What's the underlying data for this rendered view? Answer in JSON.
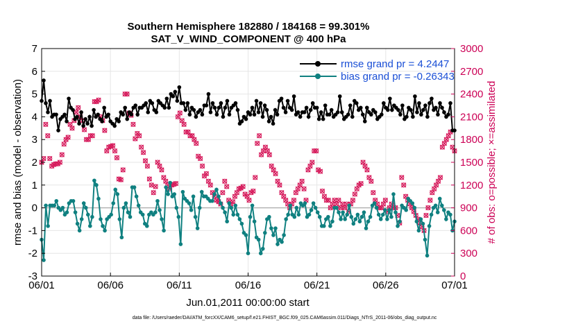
{
  "chart_data": {
    "type": "line",
    "title_line1": "Southern Hemisphere 182880 / 184168 = 99.301%",
    "title_line2": "SAT_V_WIND_COMPONENT @ 400 hPa",
    "ylabel_left": "rmse and bias (model - observation)",
    "ylabel_right": "# of obs: o=possible; ×=assimilated",
    "xlabel": "Jun.01,2011 00:00:00 start",
    "footnote": "data file: /Users/raeder/DAI/ATM_forcXX/CAM6_setup/f.e21.FHIST_BGC.f09_025.CAM6assim.011/Diags_NTrS_2011-06/obs_diag_output.nc",
    "x_ticks": [
      "06/01",
      "06/06",
      "06/11",
      "06/16",
      "06/21",
      "06/26",
      "07/01"
    ],
    "x_range_days": [
      0,
      30
    ],
    "ylim_left": [
      -3,
      7
    ],
    "yticks_left": [
      "-3",
      "-2",
      "-1",
      "0",
      "1",
      "2",
      "3",
      "4",
      "5",
      "6",
      "7"
    ],
    "ylim_right": [
      0,
      3000
    ],
    "yticks_right": [
      "0",
      "300",
      "600",
      "900",
      "1200",
      "1500",
      "1800",
      "2100",
      "2400",
      "2700",
      "3000"
    ],
    "grid": true,
    "legend_position": "top-right",
    "colors": {
      "rmse": "#000000",
      "bias": "#0f8080",
      "obs": "#d61a5b",
      "zero_line": "#aaaaaa",
      "legend_text": "#1a4fd6",
      "right_axis": "#cc0055"
    },
    "series": [
      {
        "name": "rmse grand pr = 4.2447",
        "axis": "left",
        "values": [
          4.7,
          5.6,
          4.6,
          4.2,
          4.7,
          4.0,
          4.1,
          4.1,
          3.4,
          3.9,
          4.0,
          4.1,
          3.8,
          4.8,
          4.4,
          4.3,
          3.9,
          4.0,
          3.7,
          4.2,
          3.6,
          3.9,
          3.7,
          4.0,
          3.6,
          4.3,
          4.0,
          4.1,
          3.9,
          3.8,
          4.4,
          4.0,
          4.1,
          3.8,
          3.7,
          3.6,
          3.9,
          3.8,
          4.2,
          4.1,
          4.4,
          3.9,
          4.2,
          4.1,
          4.4,
          4.5,
          4.1,
          4.4,
          4.4,
          4.5,
          4.6,
          4.2,
          4.7,
          4.6,
          4.3,
          4.2,
          4.7,
          4.6,
          4.5,
          4.4,
          4.8,
          4.4,
          5.0,
          4.9,
          5.1,
          4.7,
          5.3,
          4.6,
          4.6,
          4.3,
          4.6,
          4.1,
          4.4,
          4.3,
          4.0,
          4.2,
          4.3,
          4.1,
          4.5,
          4.5,
          5.0,
          4.2,
          4.6,
          4.4,
          4.1,
          4.4,
          4.6,
          4.0,
          4.4,
          4.7,
          4.1,
          4.4,
          4.5,
          4.6,
          4.3,
          3.7,
          3.8,
          4.0,
          3.9,
          4.2,
          4.1,
          4.4,
          4.1,
          4.7,
          4.2,
          4.6,
          4.0,
          4.5,
          4.3,
          3.8,
          4.0,
          3.7,
          4.3,
          4.1,
          4.7,
          4.8,
          4.4,
          4.2,
          4.7,
          4.4,
          4.3,
          4.9,
          4.1,
          4.2,
          4.0,
          4.2,
          4.2,
          4.4,
          4.0,
          4.3,
          4.6,
          4.4,
          4.4,
          3.9,
          4.2,
          3.9,
          4.5,
          4.1,
          4.1,
          4.3,
          4.0,
          4.1,
          4.2,
          4.9,
          4.2,
          3.9,
          4.0,
          4.1,
          4.5,
          4.0,
          4.7,
          4.6,
          4.3,
          4.4,
          4.1,
          3.8,
          4.4,
          4.2,
          4.1,
          4.3,
          4.2,
          3.9,
          4.0,
          4.1,
          4.6,
          4.4,
          4.3,
          4.8,
          4.3,
          4.5,
          4.4,
          4.3,
          4.1,
          4.5,
          3.9,
          4.0,
          4.4,
          4.3,
          4.0,
          4.9,
          4.2,
          4.6,
          4.1,
          4.3,
          4.5,
          4.0,
          4.6,
          4.8,
          4.3,
          4.4,
          4.1,
          4.6,
          4.4,
          4.2,
          4.0,
          4.1,
          4.6,
          3.4,
          3.4
        ]
      },
      {
        "name": "bias grand pr = -0.26343",
        "axis": "left",
        "values": [
          -1.4,
          -2.3,
          0.1,
          -0.8,
          0.1,
          0.1,
          0.1,
          0.3,
          0.0,
          -0.1,
          0.0,
          -0.3,
          -0.2,
          0.2,
          0.3,
          0.3,
          -0.2,
          -0.7,
          -1.0,
          -0.5,
          0.2,
          0.0,
          -0.3,
          -0.8,
          -0.4,
          1.2,
          1.0,
          0.4,
          -0.5,
          -0.8,
          -1.0,
          -0.5,
          -0.4,
          -0.3,
          0.2,
          0.8,
          0.6,
          -0.5,
          -1.3,
          0.0,
          0.2,
          -0.2,
          -0.4,
          0.9,
          0.9,
          0.5,
          0.1,
          -0.2,
          -0.3,
          -0.7,
          -0.8,
          -0.3,
          -0.2,
          -0.3,
          -0.2,
          0.3,
          -0.1,
          -0.5,
          -1.0,
          0.9,
          0.6,
          1.1,
          0.5,
          0.6,
          0.0,
          -0.4,
          -1.6,
          0.7,
          0.4,
          0.3,
          0.2,
          -0.1,
          0.5,
          -0.4,
          -0.9,
          0.0,
          0.7,
          0.5,
          0.5,
          0.4,
          0.3,
          0.3,
          0.6,
          0.8,
          0.5,
          0.2,
          0.0,
          -0.2,
          -0.6,
          0.2,
          0.0,
          -0.3,
          0.1,
          -0.3,
          -0.5,
          -0.7,
          -1.1,
          -1.2,
          -2.0,
          -0.4,
          0.1,
          -0.6,
          -1.3,
          -1.4,
          -2.0,
          -1.8,
          -1.1,
          -0.5,
          -0.4,
          -0.9,
          -1.2,
          -0.9,
          -1.6,
          -1.4,
          -1.5,
          -1.2,
          -0.5,
          -0.3,
          0.1,
          -0.3,
          -0.4,
          0.0,
          -0.3,
          0.2,
          0.1,
          0.2,
          -0.4,
          -0.3,
          -0.1,
          0.2,
          0.0,
          -0.2,
          -0.4,
          -0.8,
          -0.8,
          -0.5,
          -0.4,
          -0.8,
          -0.6,
          0.0,
          0.0,
          -0.2,
          -0.5,
          -0.2,
          -0.5,
          -0.3,
          0.1,
          -0.4,
          -0.7,
          -0.5,
          -0.3,
          -0.6,
          -0.4,
          -0.2,
          -0.9,
          -0.6,
          -0.4,
          0.1,
          0.2,
          0.0,
          -0.3,
          -0.5,
          -0.3,
          -0.1,
          -0.5,
          -0.1,
          -0.4,
          0.6,
          -0.2,
          -0.8,
          -0.6,
          0.1,
          0.0,
          -0.1,
          0.4,
          0.3,
          0.2,
          0.0,
          -0.6,
          -1.0,
          -0.5,
          -0.7,
          -1.4,
          -2.1,
          -0.8,
          -0.3,
          0.0,
          0.1,
          -0.2,
          0.4,
          0.1,
          -0.1,
          -0.5,
          -0.2,
          -0.3,
          -1.0,
          -0.6
        ]
      },
      {
        "name": "possible / assimilated obs",
        "axis": "right",
        "values": [
          1500,
          1550,
          2000,
          1850,
          1550,
          1450,
          1470,
          1480,
          1480,
          1500,
          1600,
          1740,
          1800,
          1830,
          2000,
          1950,
          2050,
          2160,
          2220,
          2100,
          2050,
          1930,
          1800,
          1800,
          1850,
          1850,
          2300,
          2300,
          2320,
          2100,
          2050,
          1920,
          1650,
          1700,
          1710,
          1720,
          1650,
          1560,
          1280,
          1270,
          1400,
          2400,
          2400,
          2150,
          2120,
          2000,
          1810,
          1880,
          1850,
          1700,
          1630,
          1520,
          1450,
          1280,
          1200,
          1100,
          1180,
          1500,
          1450,
          1400,
          1300,
          1250,
          1200,
          1150,
          1200,
          1210,
          1220,
          2100,
          2150,
          2050,
          2000,
          1900,
          1900,
          1850,
          1850,
          1800,
          1750,
          1580,
          1550,
          1450,
          1320,
          1350,
          1250,
          1200,
          1100,
          1050,
          1000,
          980,
          950,
          1100,
          1250,
          1180,
          1000,
          950,
          980,
          1050,
          1100,
          1150,
          1160,
          1180,
          1080,
          1050,
          1000,
          1100,
          1120,
          1300,
          1750,
          1850,
          1600,
          1650,
          1700,
          1650,
          1600,
          1450,
          1400,
          1350,
          1250,
          1200,
          1100,
          1050,
          1000,
          950,
          900,
          950,
          1000,
          1100,
          1150,
          1200,
          1250,
          1150,
          1000,
          1400,
          1450,
          1500,
          1650,
          1650,
          1400,
          1380,
          1120,
          1050,
          1000,
          1000,
          900,
          950,
          1000,
          950,
          1000,
          900,
          950,
          900,
          950,
          850,
          950,
          1000,
          1080,
          1150,
          1200,
          1220,
          1500,
          1450,
          1400,
          1300,
          1250,
          1100,
          1000,
          950,
          900,
          900,
          950,
          1000,
          850,
          900,
          950,
          900,
          900,
          800,
          700,
          1300,
          1200,
          1050,
          1000,
          950,
          900,
          850,
          800,
          750,
          700,
          650,
          600,
          800,
          900,
          1000,
          1100,
          1150,
          1200,
          1250,
          1300,
          1700,
          1750,
          1800,
          1850,
          1900,
          1700,
          1650
        ]
      }
    ]
  }
}
